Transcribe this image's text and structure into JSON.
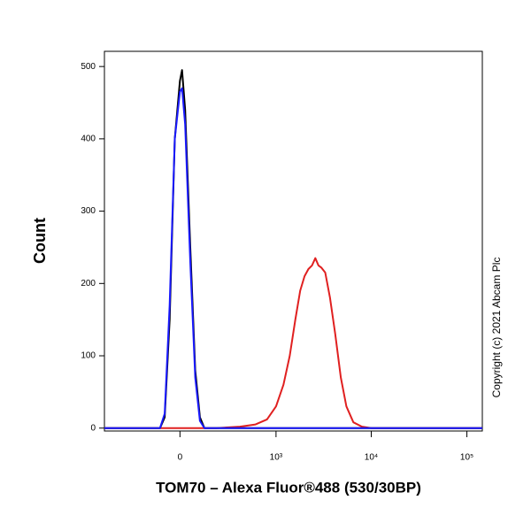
{
  "chart_data": {
    "type": "line",
    "x_label": "TOM70 – Alexa Fluor®488 (530/30BP)",
    "y_label": "Count",
    "annotation": "Copyright (c) 2021 Abcam Plc",
    "xscale": "logicle",
    "xlim": [
      -600,
      145000
    ],
    "xticks": [
      0,
      {
        "value": 1000,
        "label": "10³"
      },
      {
        "value": 10000,
        "label": "10⁴"
      },
      {
        "value": 100000,
        "label": "10⁵"
      }
    ],
    "ylim": [
      -4,
      521
    ],
    "yticks": [
      0,
      100,
      200,
      300,
      400,
      500
    ],
    "series": [
      {
        "color": "#e02020",
        "x": [
          -600,
          200,
          400,
          600,
          800,
          1000,
          1200,
          1400,
          1600,
          1800,
          2000,
          2200,
          2400,
          2600,
          2800,
          3000,
          3300,
          3700,
          4200,
          4800,
          5500,
          6500,
          8000,
          10000,
          145000
        ],
        "values": [
          0,
          0,
          2,
          5,
          12,
          30,
          60,
          100,
          150,
          190,
          210,
          220,
          225,
          235,
          225,
          222,
          215,
          180,
          130,
          70,
          30,
          8,
          2,
          0,
          0
        ]
      },
      {
        "color": "#000000",
        "x": [
          -600,
          -100,
          -75,
          -50,
          -25,
          0,
          10,
          25,
          50,
          75,
          100,
          125,
          145000
        ],
        "values": [
          0,
          0,
          15,
          150,
          400,
          480,
          495,
          440,
          250,
          80,
          15,
          0,
          0
        ]
      },
      {
        "color": "#1a1aff",
        "x": [
          -600,
          -100,
          -75,
          -50,
          -25,
          0,
          10,
          25,
          50,
          75,
          100,
          125,
          145000
        ],
        "values": [
          0,
          0,
          20,
          170,
          400,
          465,
          470,
          420,
          230,
          70,
          10,
          0,
          0
        ]
      }
    ]
  }
}
